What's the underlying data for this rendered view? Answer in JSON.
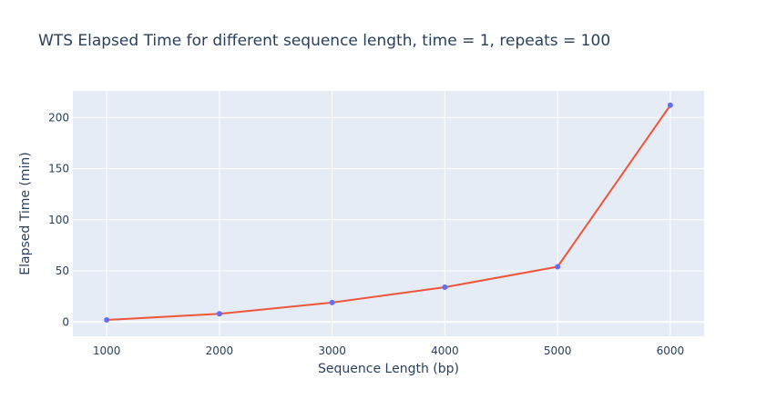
{
  "chart_data": {
    "type": "line",
    "title": "WTS Elapsed Time for different sequence length, time = 1, repeats = 100",
    "xlabel": "Sequence Length (bp)",
    "ylabel": "Elapsed Time (min)",
    "x": [
      1000,
      2000,
      3000,
      4000,
      5000,
      6000
    ],
    "series": [
      {
        "values": [
          2,
          8,
          19,
          34,
          54,
          212
        ]
      }
    ],
    "xlim": [
      700,
      6300
    ],
    "ylim": [
      -14,
      226
    ],
    "xticks": [
      1000,
      2000,
      3000,
      4000,
      5000,
      6000
    ],
    "yticks": [
      0,
      50,
      100,
      150,
      200
    ],
    "grid": true,
    "colors": {
      "plot_bg": "#E5ECF6",
      "grid": "#ffffff",
      "line": "#EF553B",
      "marker": "#636EFA",
      "text": "#2a3f5f"
    }
  }
}
